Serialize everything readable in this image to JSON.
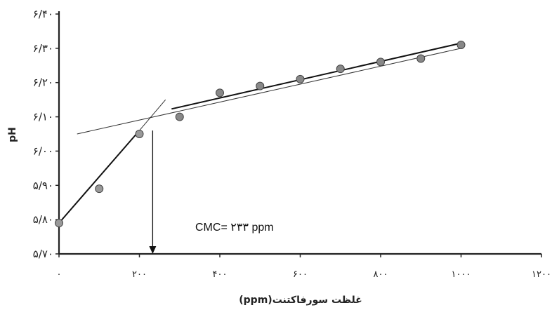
{
  "chart_data": {
    "type": "scatter",
    "title": "",
    "xlabel": "غلظت سورفاکتنت(ppm)",
    "ylabel": "pH",
    "xlim": [
      0,
      1200
    ],
    "ylim": [
      5.7,
      6.4
    ],
    "x_ticks": [
      0,
      200,
      400,
      600,
      800,
      1000,
      1200
    ],
    "x_tick_labels": [
      "۰",
      "۲۰۰",
      "۴۰۰",
      "۶۰۰",
      "۸۰۰",
      "۱۰۰۰",
      "۱۲۰۰"
    ],
    "y_ticks": [
      5.7,
      5.8,
      5.9,
      6.0,
      6.1,
      6.2,
      6.3,
      6.4
    ],
    "y_tick_labels": [
      "۵/۷۰",
      "۵/۸۰",
      "۵/۹۰",
      "۶/۰۰",
      "۶/۱۰",
      "۶/۲۰",
      "۶/۳۰",
      "۶/۴۰"
    ],
    "grid": false,
    "series": [
      {
        "points": [
          {
            "x": 0,
            "y": 5.79
          },
          {
            "x": 100,
            "y": 5.89
          },
          {
            "x": 200,
            "y": 6.05
          }
        ],
        "color": "#999999"
      },
      {
        "points": [
          {
            "x": 300,
            "y": 6.1
          },
          {
            "x": 400,
            "y": 6.17
          },
          {
            "x": 500,
            "y": 6.19
          },
          {
            "x": 600,
            "y": 6.21
          },
          {
            "x": 700,
            "y": 6.24
          },
          {
            "x": 800,
            "y": 6.26
          },
          {
            "x": 900,
            "y": 6.27
          },
          {
            "x": 1000,
            "y": 6.31
          }
        ],
        "color": "#888888"
      }
    ],
    "fit_lines": [
      {
        "x0": 0,
        "y0": 5.79,
        "x1": 200,
        "y1": 6.06
      },
      {
        "x0": 280,
        "y0": 6.123,
        "x1": 1000,
        "y1": 6.315
      }
    ],
    "thin_lines": [
      {
        "x0": 45,
        "y0": 6.05,
        "x1": 1000,
        "y1": 6.3
      },
      {
        "x0": 200,
        "y0": 6.06,
        "x1": 265,
        "y1": 6.15
      }
    ],
    "cmc_x": 233,
    "annotation": "CMC= ۲۳۳ ppm"
  }
}
